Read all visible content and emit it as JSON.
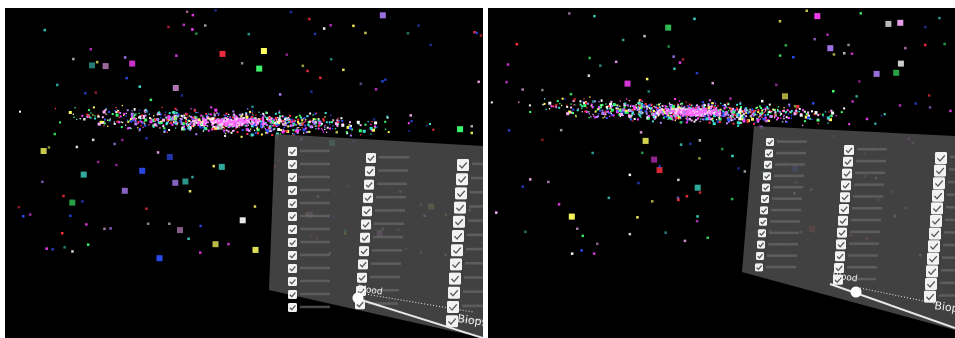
{
  "views": [
    {
      "id": "left",
      "panel": {
        "slider_left_label": "Blood",
        "slider_right_label": "Biops",
        "slider_value": 0.0,
        "checked_rows_per_column": [
          13,
          12,
          12
        ]
      }
    },
    {
      "id": "right",
      "panel": {
        "slider_left_label": "Blood",
        "slider_right_label": "Biop",
        "slider_value": 0.08,
        "checked_rows_per_column": [
          12,
          12,
          12
        ]
      }
    }
  ],
  "colors": {
    "background": "#000000",
    "panel_fill": "#4a4a4a",
    "checkbox_fill": "#f2f2f2",
    "checkmark": "#555555",
    "slider_track": "#e8e8e8",
    "label_text": "#f0f0f0",
    "point_palette": [
      "#ff40ff",
      "#3050ff",
      "#ffffff",
      "#40e0d0",
      "#ff3040",
      "#ffb0ff",
      "#40ff70",
      "#ffff60",
      "#b080ff"
    ]
  },
  "icons": {
    "checkbox": "checkbox-checked-icon",
    "slider_handle": "slider-handle-icon"
  }
}
